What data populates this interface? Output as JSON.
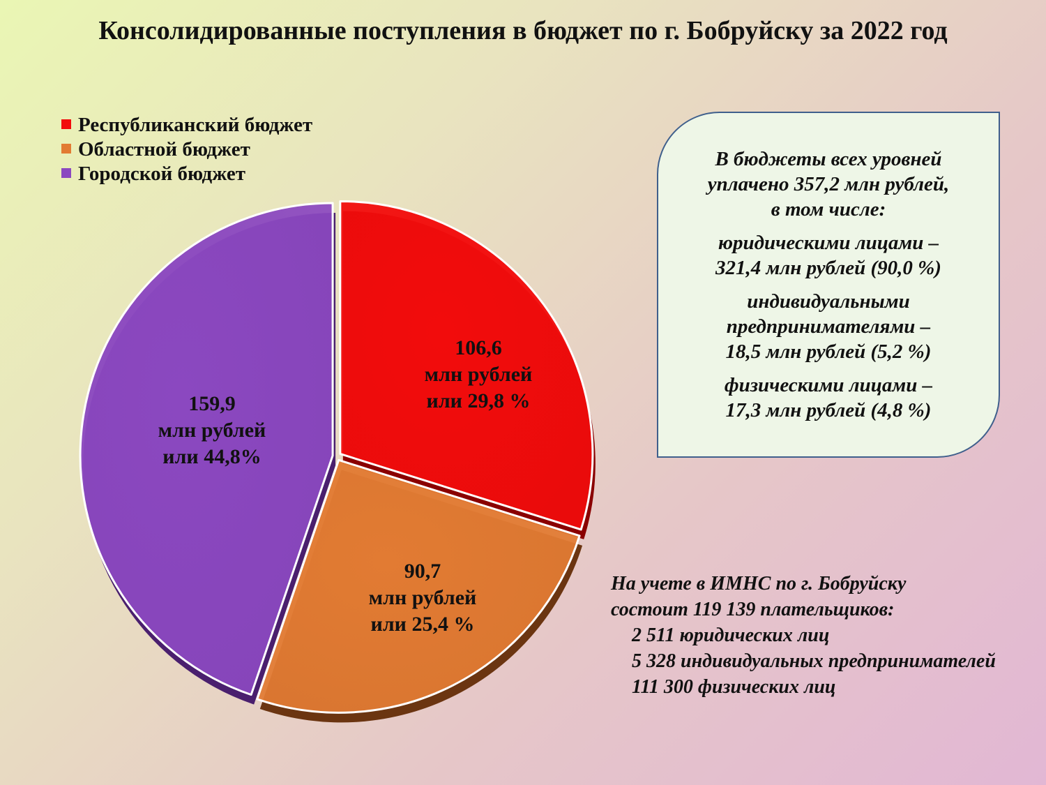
{
  "title": "Консолидированные поступления в бюджет по г. Бобруйску за 2022 год",
  "colors": {
    "republican": "#f20c0c",
    "republican_dark": "#8a0000",
    "regional": "#e27b33",
    "regional_dark": "#6b3511",
    "city": "#8b48c0",
    "city_dark": "#4a1f6e"
  },
  "chart_data": {
    "type": "pie",
    "title": "Консолидированные поступления в бюджет по г. Бобруйску за 2022 год",
    "legend_position": "top-left",
    "series": [
      {
        "name": "Республиканский бюджет",
        "value": 106.6,
        "percent": 29.8,
        "label_lines": [
          "106,6",
          "млн рублей",
          "или 29,8 %"
        ]
      },
      {
        "name": "Областной бюджет",
        "value": 90.7,
        "percent": 25.4,
        "label_lines": [
          "90,7",
          "млн рублей",
          "или 25,4 %"
        ]
      },
      {
        "name": "Городской бюджет",
        "value": 159.9,
        "percent": 44.8,
        "label_lines": [
          "159,9",
          "млн рублей",
          "или 44,8%"
        ]
      }
    ]
  },
  "info_box": {
    "intro": [
      "В бюджеты всех уровней",
      "уплачено 357,2 млн рублей,",
      "в том числе:"
    ],
    "items": [
      [
        "юридическими лицами –",
        "321,4 млн рублей (90,0 %)"
      ],
      [
        "индивидуальными",
        "предпринимателями  –",
        "18,5 млн рублей (5,2 %)"
      ],
      [
        "физическими лицами –",
        "17,3 млн рублей (4,8 %)"
      ]
    ]
  },
  "footer_note": {
    "line1": "На учете в ИМНС по г. Бобруйску",
    "line2": "состоит 119 139 плательщиков:",
    "line3": "2 511 юридических лиц",
    "line4": "5 328 индивидуальных предпринимателей",
    "line5": "111 300 физических лиц"
  }
}
